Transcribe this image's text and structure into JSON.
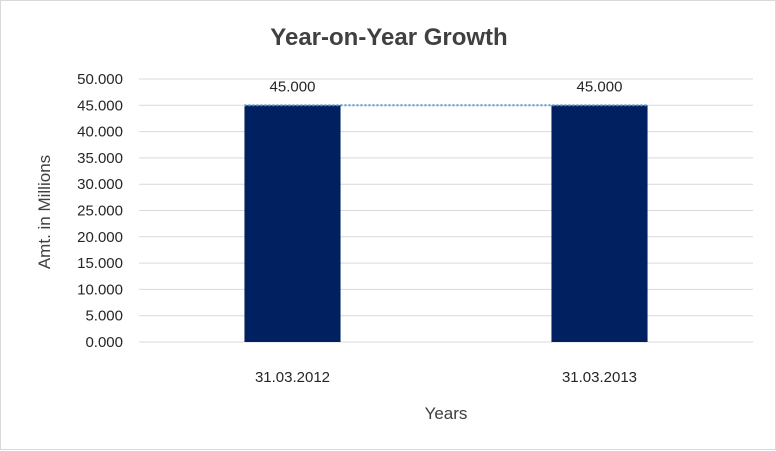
{
  "chart_data": {
    "type": "bar",
    "title": "Year-on-Year Growth",
    "xlabel": "Years",
    "ylabel": "Amt. in Millions",
    "categories": [
      "31.03.2012",
      "31.03.2013"
    ],
    "values": [
      45,
      45
    ],
    "value_labels": [
      "45.000",
      "45.000"
    ],
    "ylim": [
      0,
      50
    ],
    "yticks": [
      0,
      5,
      10,
      15,
      20,
      25,
      30,
      35,
      40,
      45,
      50
    ],
    "ytick_labels": [
      "0.000",
      "5.000",
      "10.000",
      "15.000",
      "20.000",
      "25.000",
      "30.000",
      "35.000",
      "40.000",
      "45.000",
      "50.000"
    ],
    "grid": true,
    "legend": "none",
    "trendline": "linear",
    "colors": {
      "bar": "#002060",
      "trendline": "#5b9bd5",
      "grid": "#d9d9d9"
    }
  }
}
